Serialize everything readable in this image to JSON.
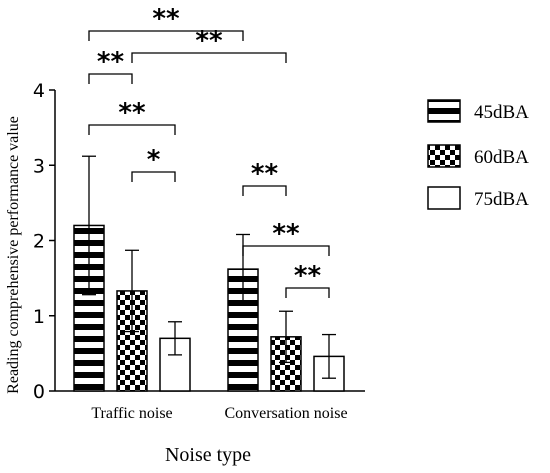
{
  "chart_data": {
    "type": "bar",
    "xlabel": "Noise type",
    "ylabel": "Reading comprehensive performance value",
    "ylim": [
      0,
      4
    ],
    "yticks": [
      "0",
      "1",
      "2",
      "3",
      "4"
    ],
    "categories": [
      "Traffic noise",
      "Conversation noise"
    ],
    "series": [
      {
        "name": "45dBA",
        "pattern": "horizontal-stripes",
        "values": [
          2.2,
          1.62
        ],
        "errors": [
          0.92,
          0.46
        ]
      },
      {
        "name": "60dBA",
        "pattern": "checkerboard",
        "values": [
          1.33,
          0.72
        ],
        "errors": [
          0.54,
          0.34
        ]
      },
      {
        "name": "75dBA",
        "pattern": "blank",
        "values": [
          0.7,
          0.46
        ],
        "errors": [
          0.22,
          0.29
        ]
      }
    ],
    "significance": [
      {
        "label": "**",
        "group_a": 0,
        "series_a": 0,
        "group_b": 1,
        "series_b": 0
      },
      {
        "label": "**",
        "group_a": 0,
        "series_a": 1,
        "group_b": 1,
        "series_b": 1
      },
      {
        "label": "**",
        "group_a": 0,
        "series_a": 0,
        "group_b": 0,
        "series_b": 1
      },
      {
        "label": "**",
        "group_a": 0,
        "series_a": 0,
        "group_b": 0,
        "series_b": 2
      },
      {
        "label": "*",
        "group_a": 0,
        "series_a": 1,
        "group_b": 0,
        "series_b": 2
      },
      {
        "label": "**",
        "group_a": 1,
        "series_a": 0,
        "group_b": 1,
        "series_b": 1
      },
      {
        "label": "**",
        "group_a": 1,
        "series_a": 0,
        "group_b": 1,
        "series_b": 2
      },
      {
        "label": "**",
        "group_a": 1,
        "series_a": 1,
        "group_b": 1,
        "series_b": 2
      }
    ],
    "legend_position": "right",
    "grid": false
  }
}
